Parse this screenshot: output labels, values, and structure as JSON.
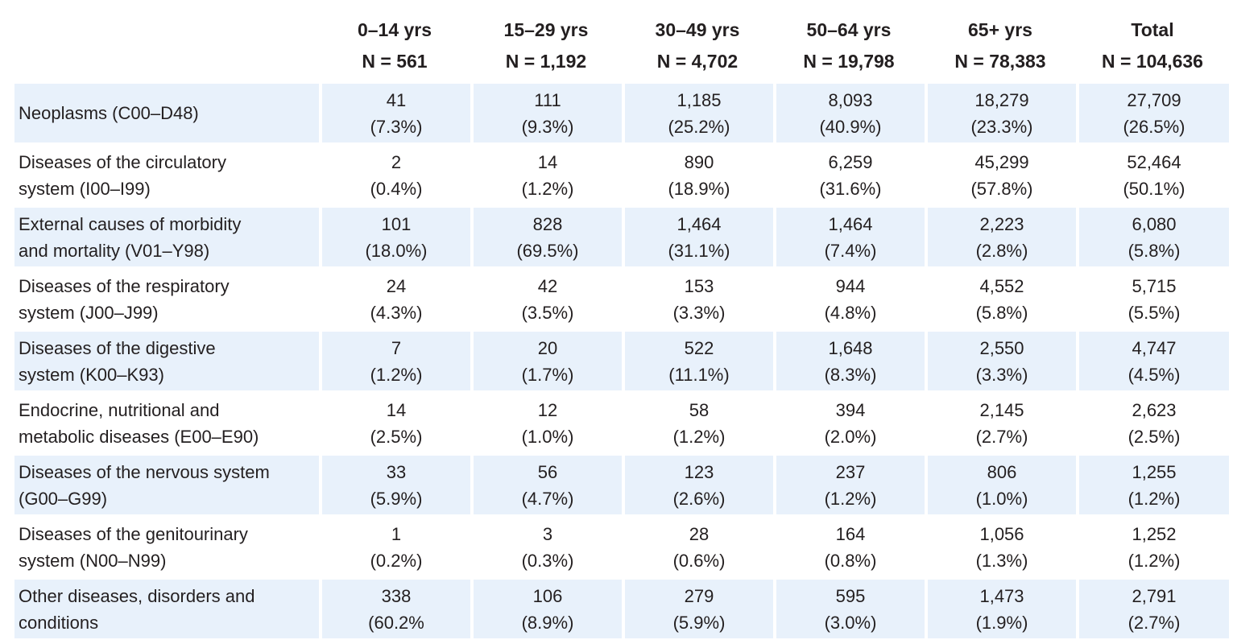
{
  "header": {
    "columns": [
      {
        "age": "0–14 yrs",
        "n": "N = 561"
      },
      {
        "age": "15–29 yrs",
        "n": "N = 1,192"
      },
      {
        "age": "30–49 yrs",
        "n": "N = 4,702"
      },
      {
        "age": "50–64 yrs",
        "n": "N = 19,798"
      },
      {
        "age": "65+ yrs",
        "n": "N = 78,383"
      },
      {
        "age": "Total",
        "n": "N = 104,636"
      }
    ]
  },
  "rows": [
    {
      "label": [
        "Neoplasms (C00–D48)"
      ],
      "cells": [
        {
          "count": "41",
          "pct": "(7.3%)"
        },
        {
          "count": "111",
          "pct": "(9.3%)"
        },
        {
          "count": "1,185",
          "pct": "(25.2%)"
        },
        {
          "count": "8,093",
          "pct": "(40.9%)"
        },
        {
          "count": "18,279",
          "pct": "(23.3%)"
        },
        {
          "count": "27,709",
          "pct": "(26.5%)"
        }
      ]
    },
    {
      "label": [
        "Diseases of the circulatory",
        "system (I00–I99)"
      ],
      "cells": [
        {
          "count": "2",
          "pct": "(0.4%)"
        },
        {
          "count": "14",
          "pct": "(1.2%)"
        },
        {
          "count": "890",
          "pct": "(18.9%)"
        },
        {
          "count": "6,259",
          "pct": "(31.6%)"
        },
        {
          "count": "45,299",
          "pct": "(57.8%)"
        },
        {
          "count": "52,464",
          "pct": "(50.1%)"
        }
      ]
    },
    {
      "label": [
        "External causes of morbidity",
        "and mortality (V01–Y98)"
      ],
      "cells": [
        {
          "count": "101",
          "pct": "(18.0%)"
        },
        {
          "count": "828",
          "pct": "(69.5%)"
        },
        {
          "count": "1,464",
          "pct": "(31.1%)"
        },
        {
          "count": "1,464",
          "pct": "(7.4%)"
        },
        {
          "count": "2,223",
          "pct": "(2.8%)"
        },
        {
          "count": "6,080",
          "pct": "(5.8%)"
        }
      ]
    },
    {
      "label": [
        "Diseases of the respiratory",
        "system (J00–J99)"
      ],
      "cells": [
        {
          "count": "24",
          "pct": "(4.3%)"
        },
        {
          "count": "42",
          "pct": "(3.5%)"
        },
        {
          "count": "153",
          "pct": "(3.3%)"
        },
        {
          "count": "944",
          "pct": "(4.8%)"
        },
        {
          "count": "4,552",
          "pct": "(5.8%)"
        },
        {
          "count": "5,715",
          "pct": "(5.5%)"
        }
      ]
    },
    {
      "label": [
        "Diseases of the digestive",
        "system (K00–K93)"
      ],
      "cells": [
        {
          "count": "7",
          "pct": "(1.2%)"
        },
        {
          "count": "20",
          "pct": "(1.7%)"
        },
        {
          "count": "522",
          "pct": "(11.1%)"
        },
        {
          "count": "1,648",
          "pct": "(8.3%)"
        },
        {
          "count": "2,550",
          "pct": "(3.3%)"
        },
        {
          "count": "4,747",
          "pct": "(4.5%)"
        }
      ]
    },
    {
      "label": [
        "Endocrine, nutritional and",
        "metabolic diseases (E00–E90)"
      ],
      "cells": [
        {
          "count": "14",
          "pct": "(2.5%)"
        },
        {
          "count": "12",
          "pct": "(1.0%)"
        },
        {
          "count": "58",
          "pct": "(1.2%)"
        },
        {
          "count": "394",
          "pct": "(2.0%)"
        },
        {
          "count": "2,145",
          "pct": "(2.7%)"
        },
        {
          "count": "2,623",
          "pct": "(2.5%)"
        }
      ]
    },
    {
      "label": [
        "Diseases of the nervous system",
        "(G00–G99)"
      ],
      "cells": [
        {
          "count": "33",
          "pct": "(5.9%)"
        },
        {
          "count": "56",
          "pct": "(4.7%)"
        },
        {
          "count": "123",
          "pct": "(2.6%)"
        },
        {
          "count": "237",
          "pct": "(1.2%)"
        },
        {
          "count": "806",
          "pct": "(1.0%)"
        },
        {
          "count": "1,255",
          "pct": "(1.2%)"
        }
      ]
    },
    {
      "label": [
        "Diseases of the genitourinary",
        "system (N00–N99)"
      ],
      "cells": [
        {
          "count": "1",
          "pct": "(0.2%)"
        },
        {
          "count": "3",
          "pct": "(0.3%)"
        },
        {
          "count": "28",
          "pct": "(0.6%)"
        },
        {
          "count": "164",
          "pct": "(0.8%)"
        },
        {
          "count": "1,056",
          "pct": "(1.3%)"
        },
        {
          "count": "1,252",
          "pct": "(1.2%)"
        }
      ]
    },
    {
      "label": [
        "Other diseases, disorders and",
        "conditions"
      ],
      "cells": [
        {
          "count": "338",
          "pct": "(60.2%"
        },
        {
          "count": "106",
          "pct": "(8.9%)"
        },
        {
          "count": "279",
          "pct": "(5.9%)"
        },
        {
          "count": "595",
          "pct": "(3.0%)"
        },
        {
          "count": "1,473",
          "pct": "(1.9%)"
        },
        {
          "count": "2,791",
          "pct": "(2.7%)"
        }
      ]
    }
  ],
  "style": {
    "shaded_row_color": "#e8f1fb",
    "text_color": "#231f20"
  }
}
